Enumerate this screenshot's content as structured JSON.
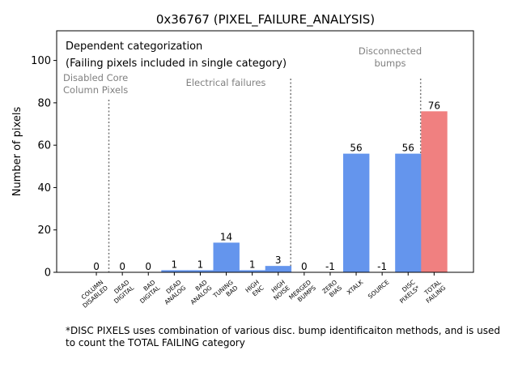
{
  "chart_data": {
    "type": "bar",
    "title": "0x36767 (PIXEL_FAILURE_ANALYSIS)",
    "xlabel": "",
    "ylabel": "Number of pixels",
    "ylim": [
      0,
      114
    ],
    "yticks": [
      0,
      20,
      40,
      60,
      80,
      100
    ],
    "categories": [
      [
        "COLUMN",
        "DISABLED"
      ],
      [
        "DEAD",
        "DIGITAL"
      ],
      [
        "BAD",
        "DIGITAL"
      ],
      [
        "DEAD",
        "ANALOG"
      ],
      [
        "BAD",
        "ANALOG"
      ],
      [
        "TUNING",
        "BAD"
      ],
      [
        "HIGH",
        "ENC"
      ],
      [
        "HIGH",
        "NOISE"
      ],
      [
        "MERGED",
        "BUMPS"
      ],
      [
        "ZERO",
        "BIAS"
      ],
      [
        "XTALK"
      ],
      [
        "SOURCE"
      ],
      [
        "DISC",
        "PIXELS*"
      ],
      [
        "TOTAL",
        "FAILING"
      ]
    ],
    "values": [
      0,
      0,
      0,
      1,
      1,
      14,
      1,
      3,
      0,
      -1,
      56,
      -1,
      56,
      76
    ],
    "bar_colors": [
      "#6495ed",
      "#6495ed",
      "#6495ed",
      "#6495ed",
      "#6495ed",
      "#6495ed",
      "#6495ed",
      "#6495ed",
      "#6495ed",
      "#6495ed",
      "#6495ed",
      "#6495ed",
      "#6495ed",
      "#f08080"
    ],
    "legend_text": [
      "Dependent categorization",
      "(Failing pixels included in single category)"
    ],
    "group_labels": [
      [
        "Disabled Core",
        "Column Pixels"
      ],
      [
        "Electrical failures"
      ],
      [
        "Disconnected",
        "bumps"
      ]
    ],
    "separators_after_index": [
      0,
      7,
      12
    ],
    "grid": false
  },
  "footnote": "*DISC PIXELS uses combination of various disc. bump identificaiton methods, and is used to count the TOTAL FAILING category"
}
